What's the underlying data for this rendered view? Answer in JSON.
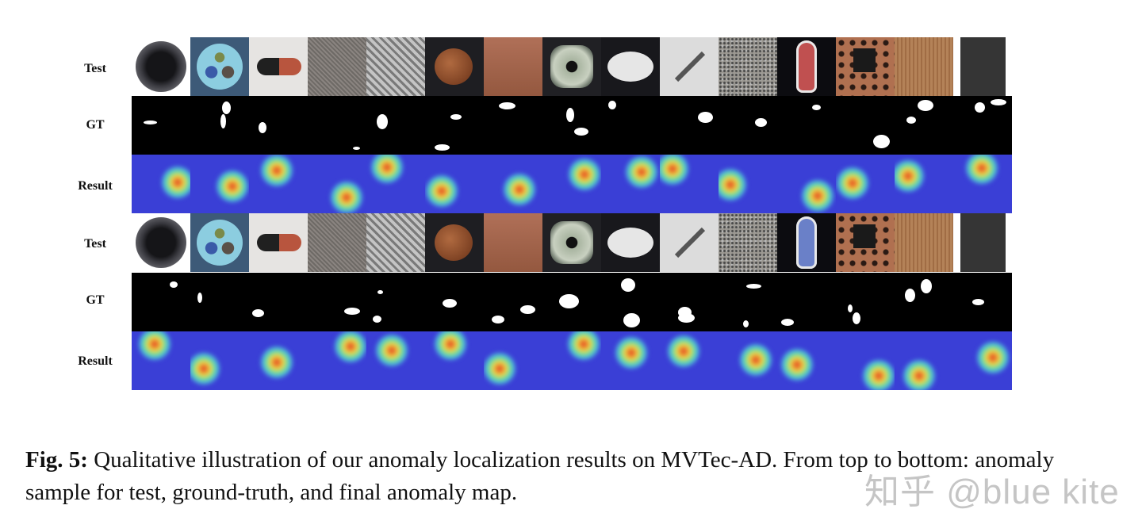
{
  "figure": {
    "row_labels": [
      "Test",
      "GT",
      "Result",
      "Test",
      "GT",
      "Result"
    ],
    "columns": [
      "bottle",
      "cable",
      "capsule",
      "carpet",
      "grid",
      "hazelnut",
      "leather",
      "metal_nut",
      "pill",
      "screw",
      "tile",
      "toothbrush",
      "transistor",
      "wood",
      "zipper"
    ],
    "tile_colors": {
      "bottle": "#2a2a2e",
      "cable": "#3d5a78",
      "capsule": "#e6e4e2",
      "carpet": "#7b7672",
      "grid": "#9a9a9a",
      "hazelnut": "#1e1e22",
      "leather": "#a5674f",
      "metal_nut": "#202024",
      "pill": "#18181c",
      "screw": "#dcdcdc",
      "tile": "#8f8d88",
      "toothbrush": "#0c0c10",
      "transistor": "#a96a4c",
      "wood": "#b07a4e",
      "zipper": "#353535"
    },
    "heatmap_palette": {
      "base": "#3a3fd6",
      "cool": "#5a7ef0",
      "mid": "#46d4c8",
      "warm": "#f0e048",
      "hot": "#e22a18"
    }
  },
  "caption": {
    "label": "Fig. 5:",
    "text": " Qualitative illustration of our anomaly localization results on MVTec-AD. From top to bottom: anomaly sample for test, ground-truth, and final anomaly map."
  },
  "watermark": {
    "text": "知乎 @blue kite"
  }
}
